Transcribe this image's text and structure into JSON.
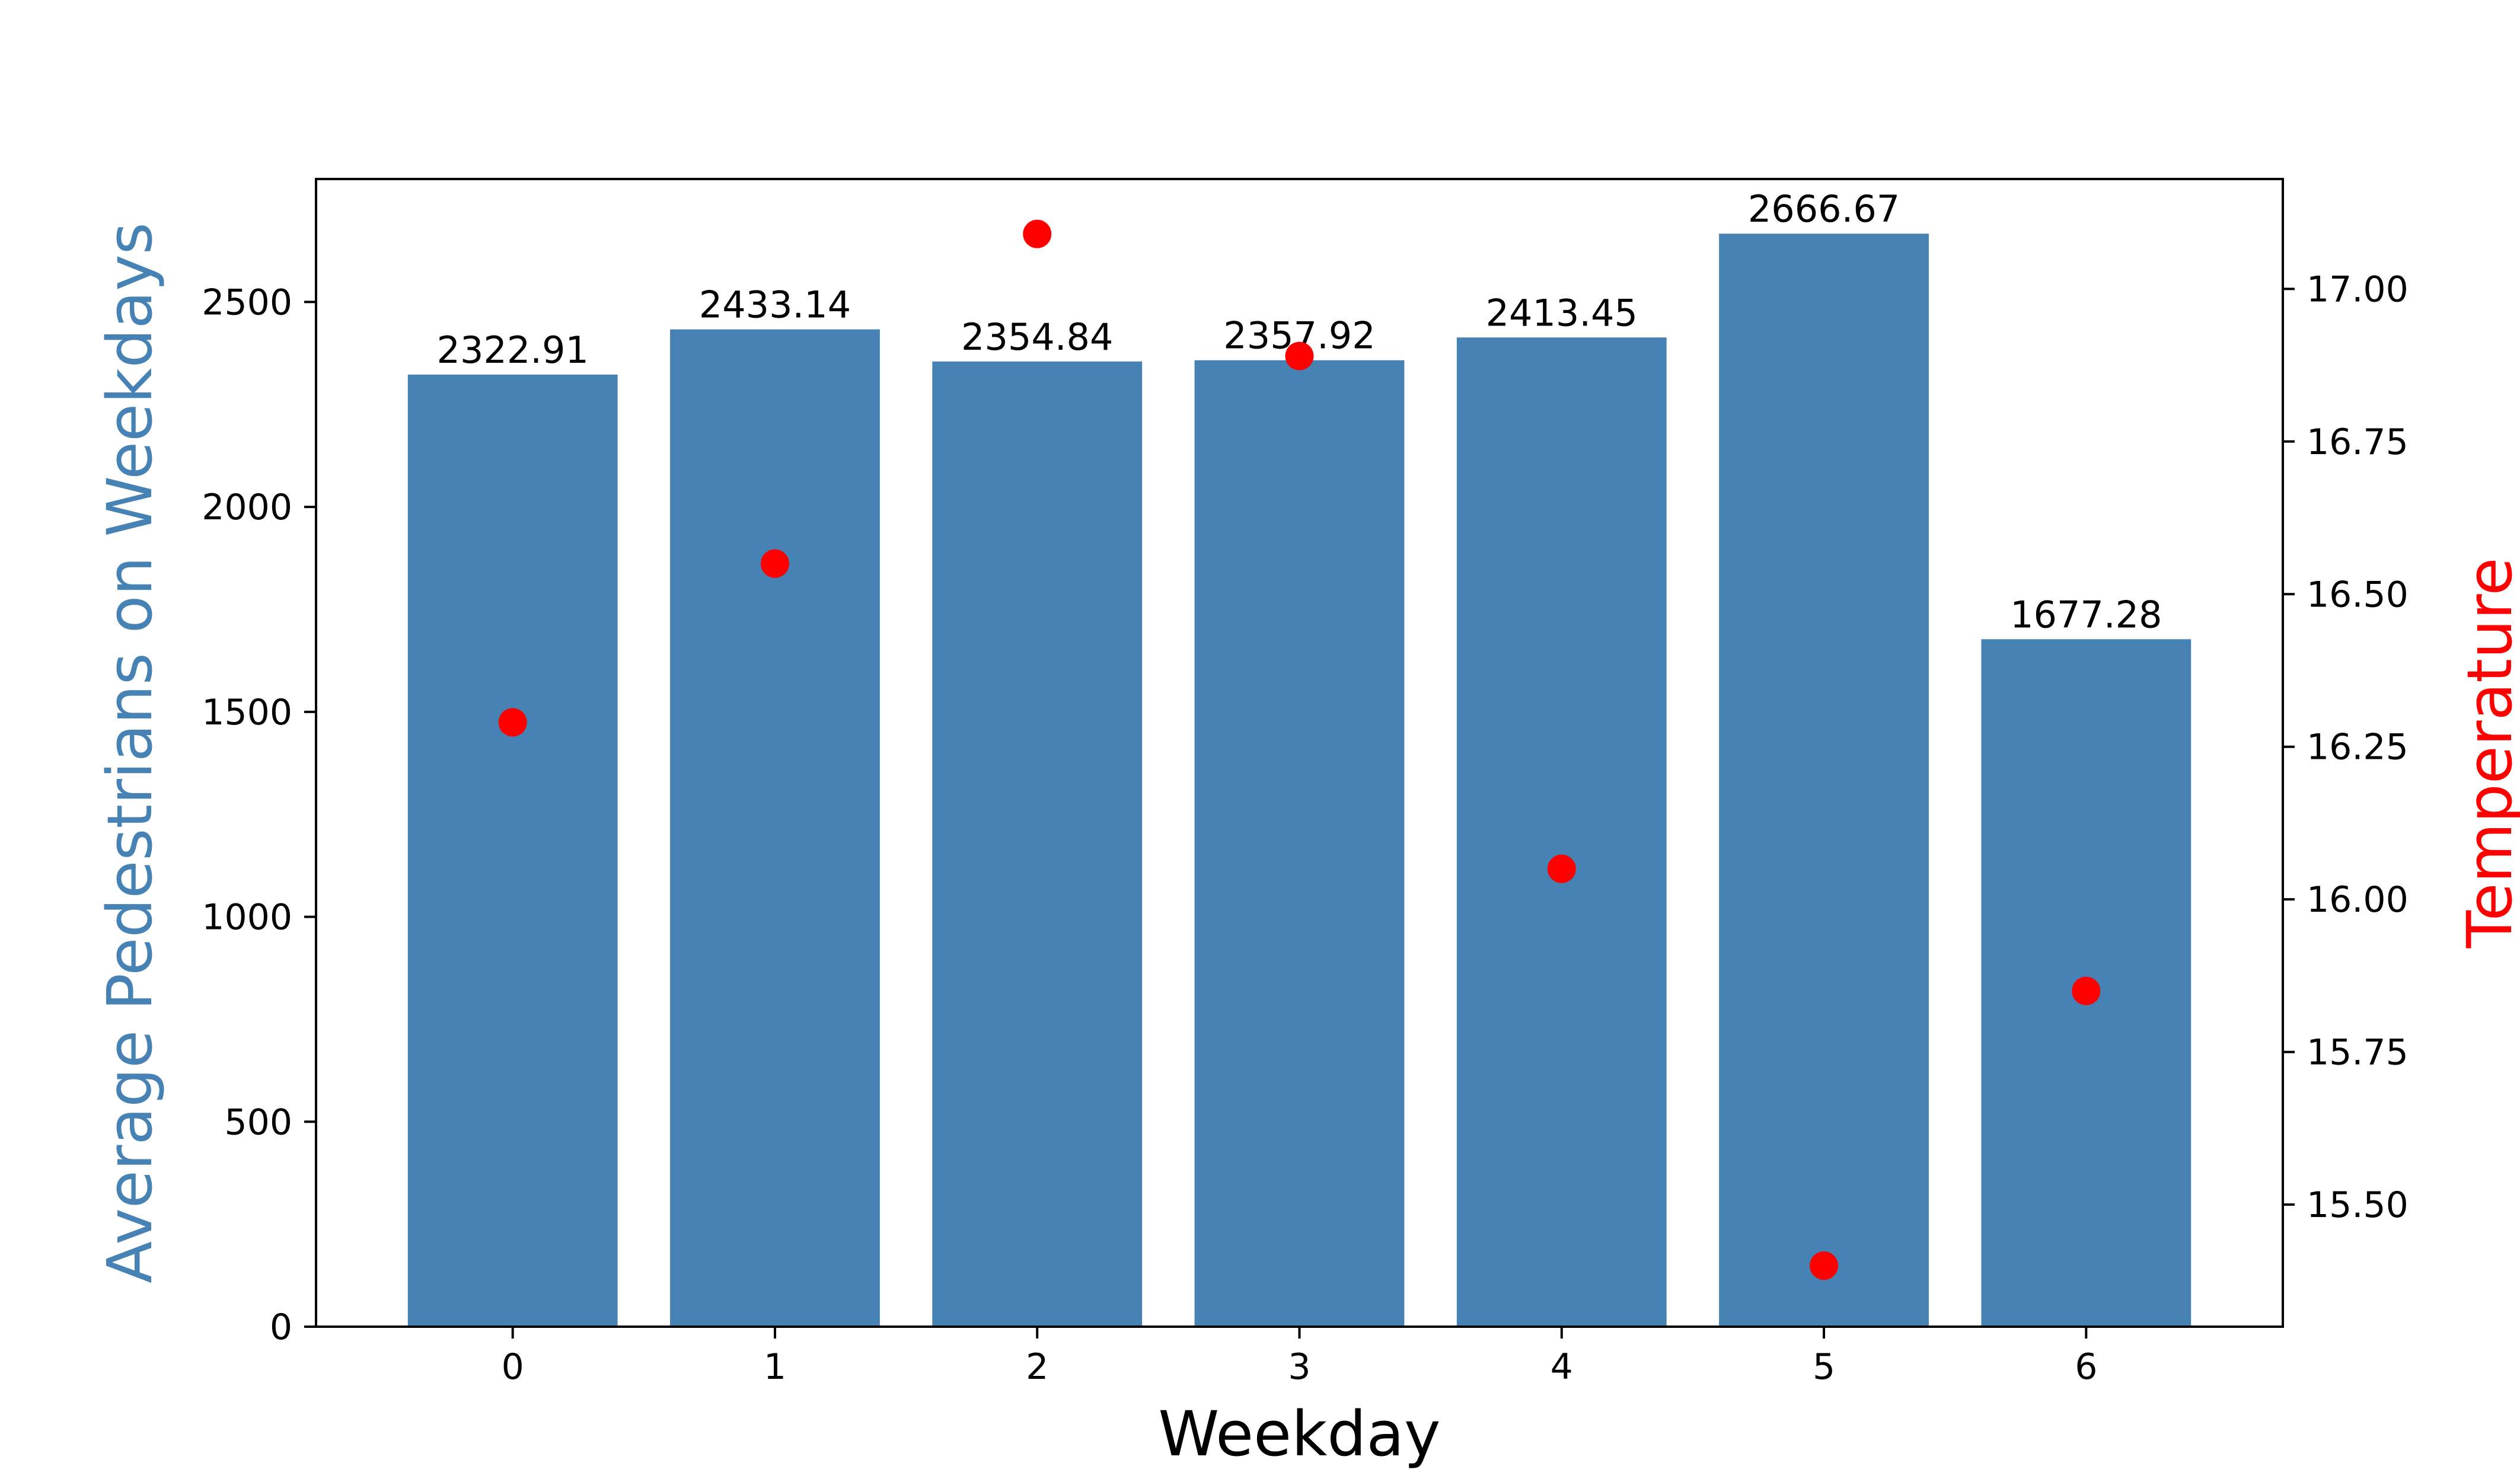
{
  "chart_data": {
    "type": "bar",
    "xlabel": "Weekday",
    "categories": [
      "0",
      "1",
      "2",
      "3",
      "4",
      "5",
      "6"
    ],
    "series": [
      {
        "name": "Average Pedestrians on Weekdays",
        "axis": "left",
        "mark": "bar",
        "color": "#4682b4",
        "values": [
          2322.91,
          2433.14,
          2354.84,
          2357.92,
          2413.45,
          2666.67,
          1677.28
        ],
        "value_labels": [
          "2322.91",
          "2433.14",
          "2354.84",
          "2357.92",
          "2413.45",
          "2666.67",
          "1677.28"
        ]
      },
      {
        "name": "Temperature",
        "axis": "right",
        "mark": "scatter",
        "color": "#ff0000",
        "values": [
          16.29,
          16.55,
          17.09,
          16.89,
          16.05,
          15.4,
          15.85
        ]
      }
    ],
    "y_left": {
      "label": "Average Pedestrians on Weekdays",
      "label_color": "#4682b4",
      "ylim": [
        0,
        2800
      ],
      "ticks": [
        0,
        500,
        1000,
        1500,
        2000,
        2500
      ],
      "tick_labels": [
        "0",
        "500",
        "1000",
        "1500",
        "2000",
        "2500"
      ]
    },
    "y_right": {
      "label": "Temperature",
      "label_color": "#ff0000",
      "ylim": [
        15.3,
        17.18
      ],
      "ticks": [
        15.5,
        15.75,
        16.0,
        16.25,
        16.5,
        16.75,
        17.0
      ],
      "tick_labels": [
        "15.50",
        "15.75",
        "16.00",
        "16.25",
        "16.50",
        "16.75",
        "17.00"
      ]
    },
    "grid": false,
    "legend": "none"
  }
}
